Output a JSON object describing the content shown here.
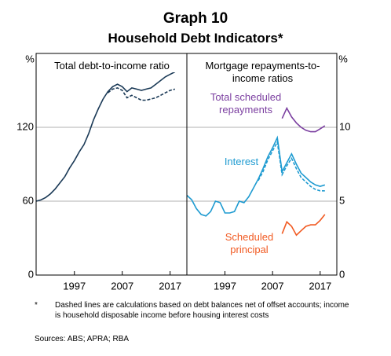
{
  "header": {
    "title": "Graph 10",
    "subtitle": "Household Debt Indicators*"
  },
  "chart_data": [
    {
      "type": "line",
      "side": "left",
      "annotation": "Total debt-to-income ratio",
      "y_unit": "%",
      "xlim": [
        1989,
        2020.5
      ],
      "xticks": [
        1997,
        2007,
        2017
      ],
      "ylim": [
        0,
        180
      ],
      "yticks": [
        0,
        60,
        120
      ],
      "grid": true,
      "series": [
        {
          "color": "#1b3a57",
          "line_style": "solid",
          "x": [
            1989,
            1990,
            1991,
            1992,
            1993,
            1994,
            1995,
            1996,
            1997,
            1998,
            1999,
            2000,
            2001,
            2002,
            2003,
            2004,
            2005,
            2006,
            2007,
            2008,
            2009,
            2010,
            2011,
            2012,
            2013,
            2014,
            2015,
            2016,
            2017,
            2018
          ],
          "values": [
            60,
            61,
            63,
            66,
            70,
            75,
            80,
            87,
            93,
            100,
            106,
            115,
            126,
            135,
            143,
            149,
            153,
            155,
            153,
            149,
            152,
            151,
            150,
            151,
            152,
            155,
            158,
            161,
            163,
            165
          ]
        },
        {
          "color": "#1b3a57",
          "line_style": "dashed",
          "x": [
            2004,
            2005,
            2006,
            2007,
            2008,
            2009,
            2010,
            2011,
            2012,
            2013,
            2014,
            2015,
            2016,
            2017,
            2018
          ],
          "values": [
            148,
            151,
            152,
            150,
            144,
            146,
            144,
            142,
            142,
            143,
            144,
            146,
            148,
            150,
            151
          ]
        }
      ]
    },
    {
      "type": "line",
      "side": "right",
      "annotation": "Mortgage repayments-to-income ratios",
      "y_unit": "%",
      "xlim": [
        1989,
        2020.5
      ],
      "xticks": [
        1997,
        2007,
        2017
      ],
      "ylim": [
        0,
        15
      ],
      "yticks": [
        0,
        5,
        10
      ],
      "grid": true,
      "series": [
        {
          "name": "Total scheduled repayments",
          "color": "#7b3fa0",
          "line_style": "solid",
          "x": [
            2009,
            2010,
            2011,
            2012,
            2013,
            2014,
            2015,
            2016,
            2017,
            2018
          ],
          "values": [
            10.6,
            11.3,
            10.7,
            10.3,
            10.0,
            9.8,
            9.7,
            9.7,
            9.9,
            10.1
          ]
        },
        {
          "name": "Interest",
          "color": "#1f9bd1",
          "line_style": "solid",
          "x": [
            1989,
            1990,
            1991,
            1992,
            1993,
            1994,
            1995,
            1996,
            1997,
            1998,
            1999,
            2000,
            2001,
            2002,
            2003,
            2004,
            2005,
            2006,
            2007,
            2008,
            2009,
            2010,
            2011,
            2012,
            2013,
            2014,
            2015,
            2016,
            2017,
            2018
          ],
          "values": [
            5.4,
            5.1,
            4.5,
            4.1,
            4.0,
            4.3,
            5.0,
            4.9,
            4.2,
            4.2,
            4.3,
            5.0,
            4.9,
            5.3,
            5.9,
            6.5,
            7.2,
            8.0,
            8.6,
            9.3,
            7.0,
            7.6,
            8.2,
            7.5,
            6.9,
            6.6,
            6.3,
            6.1,
            6.0,
            6.1
          ]
        },
        {
          "color": "#1f9bd1",
          "line_style": "dashed",
          "x": [
            2004,
            2005,
            2006,
            2007,
            2008,
            2009,
            2010,
            2011,
            2012,
            2013,
            2014,
            2015,
            2016,
            2017,
            2018
          ],
          "values": [
            6.4,
            7.0,
            7.8,
            8.4,
            9.0,
            6.8,
            7.4,
            7.9,
            7.2,
            6.6,
            6.3,
            6.0,
            5.8,
            5.7,
            5.7
          ]
        },
        {
          "name": "Scheduled principal",
          "color": "#f15a22",
          "line_style": "solid",
          "x": [
            2009,
            2010,
            2011,
            2012,
            2013,
            2014,
            2015,
            2016,
            2017,
            2018
          ],
          "values": [
            2.8,
            3.6,
            3.3,
            2.7,
            3.0,
            3.3,
            3.4,
            3.4,
            3.7,
            4.1
          ]
        }
      ]
    }
  ],
  "footnote": {
    "marker": "*",
    "text": "Dashed lines are calculations based on debt balances net of offset accounts; income is household disposable income before housing interest costs",
    "sources": "Sources: ABS; APRA; RBA"
  }
}
